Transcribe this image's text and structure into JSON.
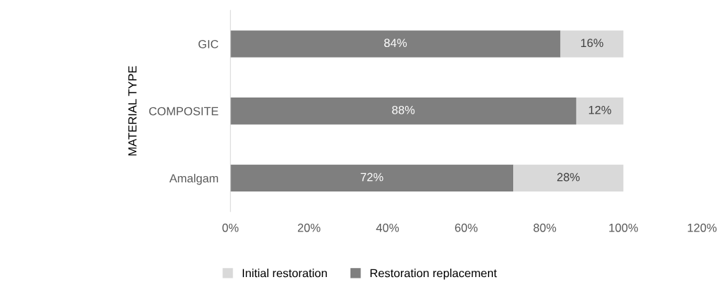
{
  "chart_data": {
    "type": "bar",
    "orientation": "horizontal",
    "stacked": true,
    "ylabel": "MATERIAL TYPE",
    "categories": [
      "GIC",
      "COMPOSITE",
      "Amalgam"
    ],
    "series": [
      {
        "name": "Restoration replacement",
        "color": "#7f7f7f",
        "values": [
          84,
          88,
          72
        ],
        "value_labels": [
          "84%",
          "88%",
          "72%"
        ]
      },
      {
        "name": "Initial restoration",
        "color": "#d9d9d9",
        "values": [
          16,
          12,
          28
        ],
        "value_labels": [
          "16%",
          "12%",
          "28%"
        ]
      }
    ],
    "xlim": [
      0,
      120
    ],
    "xticks": [
      {
        "value": 0,
        "label": "0%"
      },
      {
        "value": 20,
        "label": "20%"
      },
      {
        "value": 40,
        "label": "40%"
      },
      {
        "value": 60,
        "label": "60%"
      },
      {
        "value": 80,
        "label": "80%"
      },
      {
        "value": 100,
        "label": "100%"
      },
      {
        "value": 120,
        "label": "120%"
      }
    ],
    "grid": false,
    "legend": "bottom"
  }
}
